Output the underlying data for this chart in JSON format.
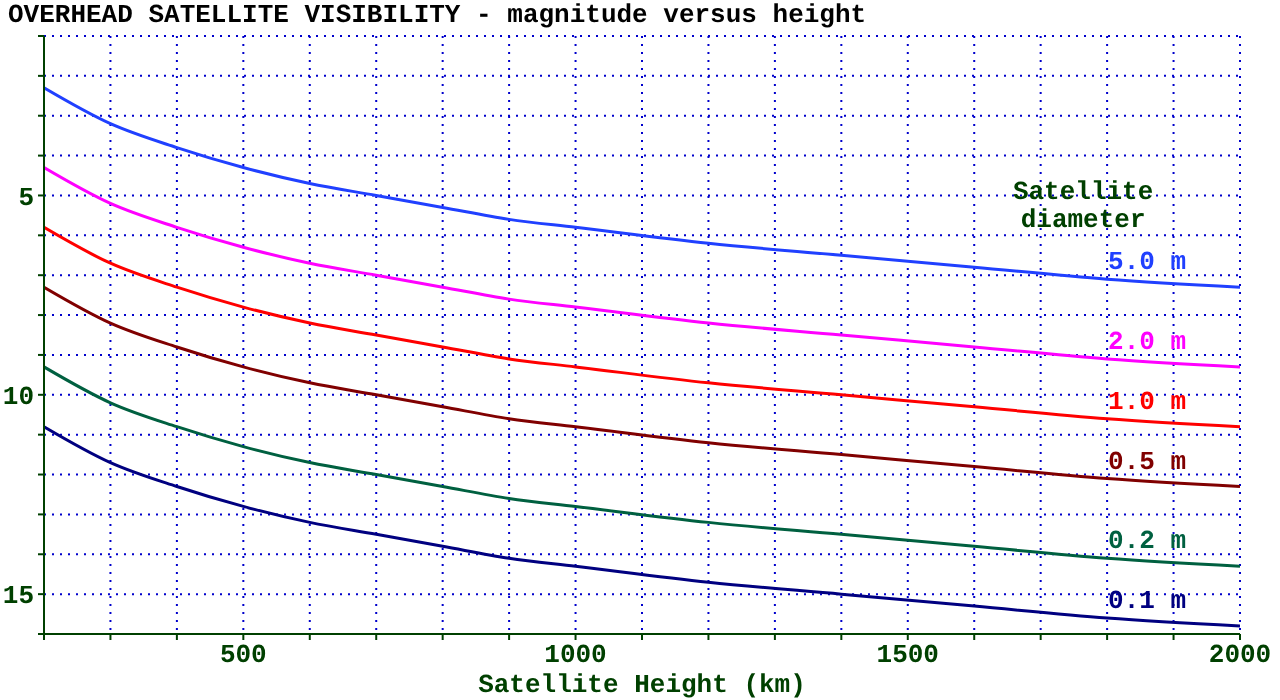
{
  "chart_data": {
    "type": "line",
    "title": "OVERHEAD SATELLITE VISIBILITY - magnitude versus height",
    "xlabel": "Satellite Height (km)",
    "legend_title": "Satellite diameter",
    "legend": "right",
    "grid": true,
    "line_style": "solid",
    "marker": "none",
    "x": [
      200,
      300,
      400,
      500,
      600,
      700,
      800,
      900,
      1000,
      1200,
      1400,
      1600,
      1800,
      2000
    ],
    "xlim": [
      200,
      2000
    ],
    "xticks": [
      {
        "value": 200,
        "label": null
      },
      {
        "value": 300,
        "label": null
      },
      {
        "value": 400,
        "label": null
      },
      500,
      {
        "value": 600,
        "label": null
      },
      {
        "value": 700,
        "label": null
      },
      {
        "value": 800,
        "label": null
      },
      {
        "value": 900,
        "label": null
      },
      1000,
      {
        "value": 1100,
        "label": null
      },
      {
        "value": 1200,
        "label": null
      },
      {
        "value": 1300,
        "label": null
      },
      {
        "value": 1400,
        "label": null
      },
      1500,
      {
        "value": 1600,
        "label": null
      },
      {
        "value": 1700,
        "label": null
      },
      {
        "value": 1800,
        "label": null
      },
      {
        "value": 1900,
        "label": null
      },
      2000
    ],
    "ylim": [
      16,
      1
    ],
    "yticks": [
      {
        "value": 1,
        "label": null
      },
      {
        "value": 2,
        "label": null
      },
      {
        "value": 3,
        "label": null
      },
      {
        "value": 4,
        "label": null
      },
      5,
      {
        "value": 6,
        "label": null
      },
      {
        "value": 7,
        "label": null
      },
      {
        "value": 8,
        "label": null
      },
      {
        "value": 9,
        "label": null
      },
      10,
      {
        "value": 11,
        "label": null
      },
      {
        "value": 12,
        "label": null
      },
      {
        "value": 13,
        "label": null
      },
      {
        "value": 14,
        "label": null
      },
      15,
      {
        "value": 16,
        "label": null
      }
    ],
    "series": [
      {
        "name": "5.0 m",
        "color": "#2040ff",
        "values": [
          2.3,
          3.2,
          3.8,
          4.3,
          4.7,
          5.0,
          5.3,
          5.6,
          5.8,
          6.2,
          6.5,
          6.8,
          7.1,
          7.3
        ]
      },
      {
        "name": "2.0 m",
        "color": "#ff00ff",
        "values": [
          4.3,
          5.2,
          5.8,
          6.3,
          6.7,
          7.0,
          7.3,
          7.6,
          7.8,
          8.2,
          8.5,
          8.8,
          9.1,
          9.3
        ]
      },
      {
        "name": "1.0 m",
        "color": "#ff0000",
        "values": [
          5.8,
          6.7,
          7.3,
          7.8,
          8.2,
          8.5,
          8.8,
          9.1,
          9.3,
          9.7,
          10.0,
          10.3,
          10.6,
          10.8
        ]
      },
      {
        "name": "0.5 m",
        "color": "#800000",
        "values": [
          7.3,
          8.2,
          8.8,
          9.3,
          9.7,
          10.0,
          10.3,
          10.6,
          10.8,
          11.2,
          11.5,
          11.8,
          12.1,
          12.3
        ]
      },
      {
        "name": "0.2 m",
        "color": "#006040",
        "values": [
          9.3,
          10.2,
          10.8,
          11.3,
          11.7,
          12.0,
          12.3,
          12.6,
          12.8,
          13.2,
          13.5,
          13.8,
          14.1,
          14.3
        ]
      },
      {
        "name": "0.1 m",
        "color": "#000080",
        "values": [
          10.8,
          11.7,
          12.3,
          12.8,
          13.2,
          13.5,
          13.8,
          14.1,
          14.3,
          14.7,
          15.0,
          15.3,
          15.6,
          15.8
        ]
      }
    ]
  }
}
